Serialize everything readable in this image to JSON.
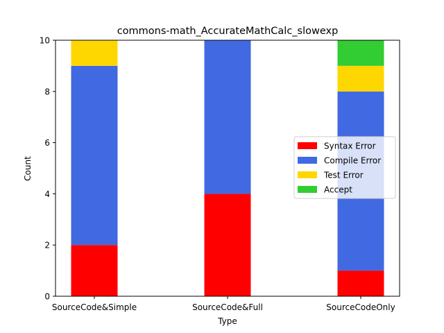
{
  "chart_data": {
    "type": "bar",
    "stacked": true,
    "title": "commons-math_AccurateMathCalc_slowexp",
    "xlabel": "Type",
    "ylabel": "Count",
    "ylim": [
      0,
      10
    ],
    "yticks": [
      0,
      2,
      4,
      6,
      8,
      10
    ],
    "grid": false,
    "legend_position": "center-right",
    "categories": [
      "SourceCode&Simple",
      "SourceCode&Full",
      "SourceCodeOnly"
    ],
    "series": [
      {
        "name": "Syntax Error",
        "color": "#ff0000",
        "values": [
          2,
          4,
          1
        ]
      },
      {
        "name": "Compile Error",
        "color": "#4169e1",
        "values": [
          7,
          6,
          7
        ]
      },
      {
        "name": "Test Error",
        "color": "#ffd700",
        "values": [
          1,
          0,
          1
        ]
      },
      {
        "name": "Accept",
        "color": "#32cd32",
        "values": [
          0,
          0,
          1
        ]
      }
    ]
  }
}
